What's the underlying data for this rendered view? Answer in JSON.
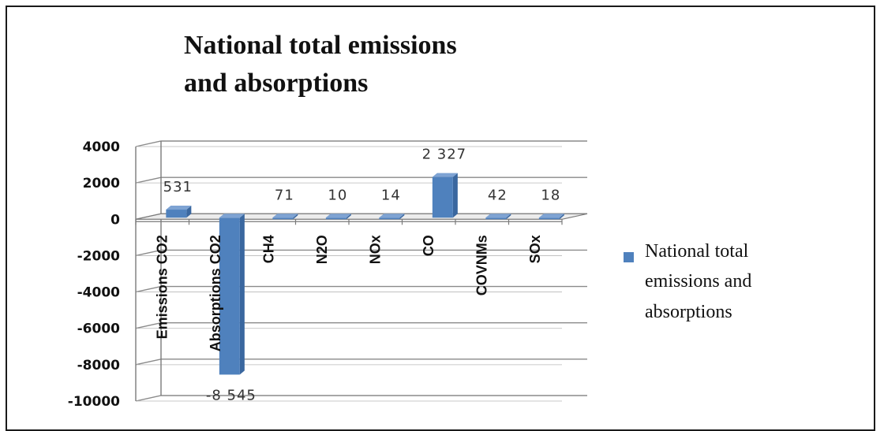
{
  "chart_data": {
    "type": "bar",
    "title_lines": [
      "National total emissions",
      "and absorptions"
    ],
    "categories": [
      "Emissions CO2",
      "Absorptions CO2",
      "CH4",
      "N2O",
      "NOx",
      "CO",
      "COVNMs",
      "SOx"
    ],
    "series": [
      {
        "name": "National total emissions and absorptions",
        "values": [
          531,
          -8545,
          71,
          10,
          14,
          2327,
          42,
          18
        ],
        "labels": [
          "531",
          "-8 545",
          "71",
          "10",
          "14",
          "2 327",
          "42",
          "18"
        ]
      }
    ],
    "yticks": [
      "4000",
      "2000",
      "0",
      "-2000",
      "-4000",
      "-6000",
      "-8000",
      "-10000"
    ],
    "ylim": [
      -10000,
      4000
    ],
    "grid": true,
    "legend_lines": [
      "National total",
      "emissions and",
      "absorptions"
    ],
    "legend_position": "right",
    "colors": {
      "bar_front": "#4f81bd",
      "bar_side": "#3a679f",
      "bar_top": "#7ea3d3"
    }
  }
}
